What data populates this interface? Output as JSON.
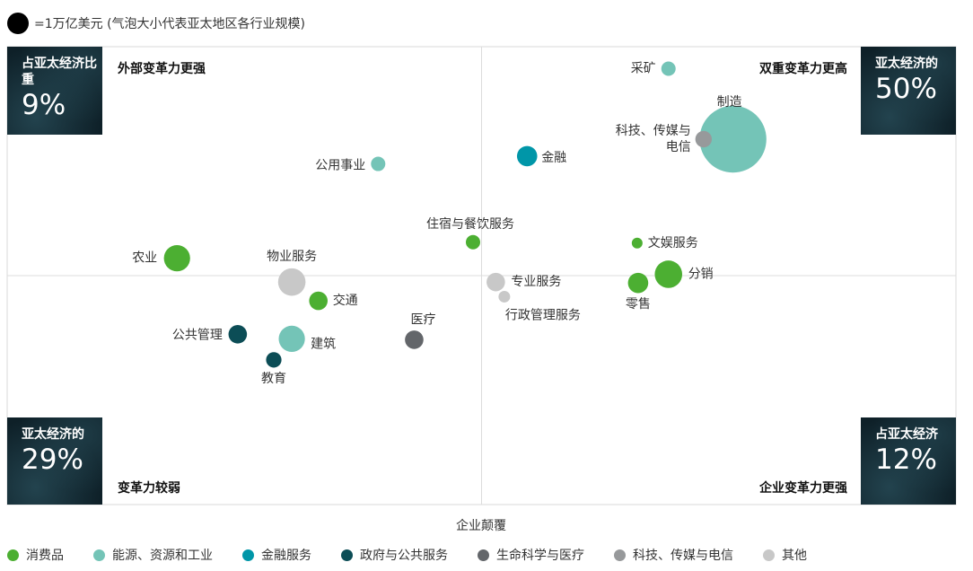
{
  "size_key": {
    "label": "=1万亿美元 (气泡大小代表亚太地区各行业规模)"
  },
  "quadrants": {
    "top_left": {
      "title": "外部变革力更强",
      "box_label": "占亚太经济比重",
      "box_value": "9%"
    },
    "top_right": {
      "title": "双重变革力更高",
      "box_label": "亚太经济的",
      "box_value": "50%"
    },
    "bottom_left": {
      "title": "变革力较弱",
      "box_label": "亚太经济的",
      "box_value": "29%"
    },
    "bottom_right": {
      "title": "企业变革力更强",
      "box_label": "占亚太经济",
      "box_value": "12%"
    }
  },
  "chart_data": {
    "type": "scatter",
    "xlabel": "企业颠覆",
    "ylabel": "",
    "xlim": [
      0,
      100
    ],
    "ylim": [
      0,
      100
    ],
    "grid": "quadrant-midlines",
    "legend": [
      {
        "name": "消费品",
        "color": "#4caf32"
      },
      {
        "name": "能源、资源和工业",
        "color": "#74c4b7"
      },
      {
        "name": "金融服务",
        "color": "#0096a8"
      },
      {
        "name": "政府与公共服务",
        "color": "#0c4d56"
      },
      {
        "name": "生命科学与医疗",
        "color": "#63666a"
      },
      {
        "name": "科技、传媒与电信",
        "color": "#97999b"
      },
      {
        "name": "其他",
        "color": "#c8c8c8"
      }
    ],
    "points": [
      {
        "label": "采矿",
        "category": "能源、资源和工业",
        "x": 69.7,
        "y": 95.2,
        "size": 0.3
      },
      {
        "label": "制造",
        "category": "能源、资源和工业",
        "x": 76.5,
        "y": 79.8,
        "size": 6.5
      },
      {
        "label": "科技、传媒与电信",
        "category": "科技、传媒与电信",
        "x": 73.4,
        "y": 79.8,
        "size": 0.4
      },
      {
        "label": "金融",
        "category": "金融服务",
        "x": 54.8,
        "y": 76.1,
        "size": 0.6
      },
      {
        "label": "公用事业",
        "category": "能源、资源和工业",
        "x": 39.1,
        "y": 74.4,
        "size": 0.3
      },
      {
        "label": "住宿与餐饮服务",
        "category": "消费品",
        "x": 49.1,
        "y": 57.3,
        "size": 0.3
      },
      {
        "label": "文娱服务",
        "category": "消费品",
        "x": 66.4,
        "y": 57.1,
        "size": 0.15
      },
      {
        "label": "农业",
        "category": "消费品",
        "x": 17.9,
        "y": 53.8,
        "size": 1.0
      },
      {
        "label": "物业服务",
        "category": "其他",
        "x": 30.0,
        "y": 48.6,
        "size": 1.1
      },
      {
        "label": "分销",
        "category": "消费品",
        "x": 69.7,
        "y": 50.3,
        "size": 1.1
      },
      {
        "label": "零售",
        "category": "消费品",
        "x": 66.5,
        "y": 48.4,
        "size": 0.6
      },
      {
        "label": "专业服务",
        "category": "其他",
        "x": 51.5,
        "y": 48.6,
        "size": 0.5
      },
      {
        "label": "交通",
        "category": "消费品",
        "x": 32.8,
        "y": 44.5,
        "size": 0.5
      },
      {
        "label": "行政管理服务",
        "category": "其他",
        "x": 52.4,
        "y": 45.4,
        "size": 0.2
      },
      {
        "label": "医疗",
        "category": "生命科学与医疗",
        "x": 42.9,
        "y": 36.0,
        "size": 0.5
      },
      {
        "label": "公共管理",
        "category": "政府与公共服务",
        "x": 24.3,
        "y": 37.2,
        "size": 0.5
      },
      {
        "label": "建筑",
        "category": "能源、资源和工业",
        "x": 30.0,
        "y": 36.2,
        "size": 1.0
      },
      {
        "label": "教育",
        "category": "政府与公共服务",
        "x": 28.1,
        "y": 31.6,
        "size": 0.35
      }
    ]
  }
}
